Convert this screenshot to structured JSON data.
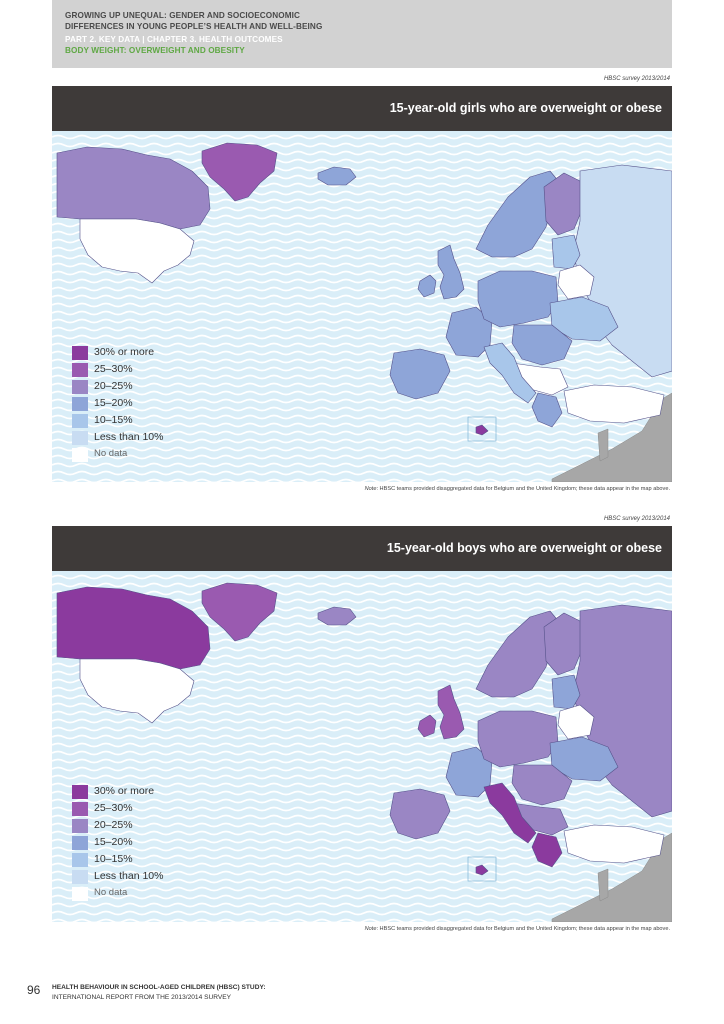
{
  "header": {
    "line1": "GROWING UP UNEQUAL: GENDER AND SOCIOECONOMIC",
    "line2": "DIFFERENCES IN YOUNG PEOPLE’S HEALTH AND WELL-BEING",
    "line3": "PART 2. KEY DATA | CHAPTER 3. HEALTH OUTCOMES",
    "line4": "BODY WEIGHT: OVERWEIGHT AND OBESITY"
  },
  "colors": {
    "c30": "#8b3a9e",
    "c25": "#9a5ab0",
    "c20": "#9a86c4",
    "c15": "#8ea5d8",
    "c10": "#a8c6ea",
    "c0": "#c8dcf2",
    "nodata": "#ffffff",
    "grey": "#a7a7a7",
    "sea": "#daeef8",
    "wave": "#ffffff",
    "titlebar": "#3e3a39",
    "header_green": "#5fa844"
  },
  "maps": [
    {
      "survey": "HBSC survey 2013/2014",
      "title": "15-year-old girls who are overweight or obese",
      "legend": [
        "30% or more",
        "25–30%",
        "20–25%",
        "15–20%",
        "10–15%",
        "Less than 10%",
        "No data"
      ],
      "note_prefix": "Note",
      "note_text": ": HBSC teams provided disaggregated data for Belgium and the United Kingdom; these data appear in the map above.",
      "categories": {
        "greenland": "c25",
        "canada": "c20",
        "usa": "nodata",
        "iceland": "c15",
        "ireland": "c15",
        "uk": "c15",
        "iberia": "c15",
        "france": "c15",
        "central": "c15",
        "scandinavia": "c15",
        "finland": "c20",
        "russia": "c0",
        "baltics": "c10",
        "belarus": "nodata",
        "ukraine": "c10",
        "eastern": "c15",
        "balkans": "nodata",
        "italy": "c10",
        "greece": "c15",
        "turkey": "nodata",
        "malta": "c30"
      }
    },
    {
      "survey": "HBSC survey 2013/2014",
      "title": "15-year-old boys who are overweight or obese",
      "legend": [
        "30% or more",
        "25–30%",
        "20–25%",
        "15–20%",
        "10–15%",
        "Less than 10%",
        "No data"
      ],
      "note_prefix": "Note",
      "note_text": ": HBSC teams provided disaggregated data for Belgium and the United Kingdom; these data appear in the map above.",
      "categories": {
        "greenland": "c25",
        "canada": "c30",
        "usa": "nodata",
        "iceland": "c20",
        "ireland": "c25",
        "uk": "c25",
        "iberia": "c20",
        "france": "c15",
        "central": "c20",
        "scandinavia": "c20",
        "finland": "c20",
        "russia": "c20",
        "baltics": "c15",
        "belarus": "nodata",
        "ukraine": "c15",
        "eastern": "c20",
        "balkans": "c20",
        "italy": "c30",
        "greece": "c30",
        "turkey": "nodata",
        "malta": "c30"
      }
    }
  ],
  "footer": {
    "page_number": "96",
    "line1": "HEALTH BEHAVIOUR IN SCHOOL-AGED CHILDREN (HBSC) STUDY:",
    "line2": "INTERNATIONAL REPORT FROM THE 2013/2014 SURVEY"
  }
}
